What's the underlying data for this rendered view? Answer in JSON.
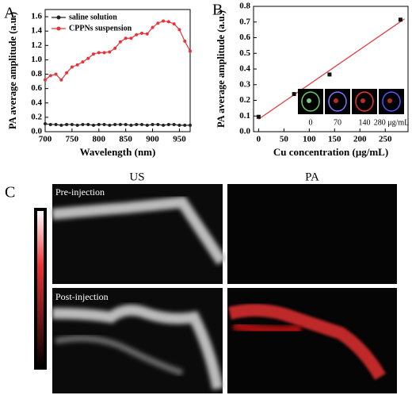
{
  "chart_data": [
    {
      "type": "line",
      "label": "A",
      "xlabel": "Wavelength (nm)",
      "ylabel": "PA average amplitude (a.u.)",
      "x": [
        700,
        710,
        720,
        730,
        740,
        750,
        760,
        770,
        780,
        790,
        800,
        810,
        820,
        830,
        840,
        850,
        860,
        870,
        880,
        890,
        900,
        910,
        920,
        930,
        940,
        950,
        960,
        970
      ],
      "series": [
        {
          "name": "saline solution",
          "color": "#222222",
          "values": [
            0.11,
            0.1,
            0.1,
            0.09,
            0.1,
            0.1,
            0.09,
            0.1,
            0.1,
            0.09,
            0.1,
            0.1,
            0.09,
            0.1,
            0.1,
            0.1,
            0.09,
            0.1,
            0.1,
            0.09,
            0.1,
            0.1,
            0.09,
            0.1,
            0.1,
            0.09,
            0.09,
            0.09
          ]
        },
        {
          "name": "CPPNs suspension",
          "color": "#e8333a",
          "values": [
            0.72,
            0.78,
            0.8,
            0.72,
            0.82,
            0.9,
            0.93,
            0.97,
            1.02,
            1.08,
            1.1,
            1.1,
            1.11,
            1.16,
            1.25,
            1.3,
            1.3,
            1.35,
            1.37,
            1.36,
            1.45,
            1.51,
            1.54,
            1.53,
            1.5,
            1.42,
            1.26,
            1.12
          ]
        }
      ],
      "xlim": [
        700,
        970
      ],
      "xticks": [
        700,
        750,
        800,
        850,
        900,
        950
      ],
      "ylim": [
        0,
        1.7
      ],
      "yticks": [
        {
          "value": 0,
          "label": "0.0"
        },
        0.2,
        0.4,
        0.6,
        0.8,
        {
          "value": 1,
          "label": "1.0"
        },
        1.2,
        1.4,
        1.6
      ],
      "legend": "upper left"
    },
    {
      "type": "scatter",
      "label": "B",
      "xlabel": "Cu concentration (μg/mL)",
      "ylabel": "PA average amplitude (a.u.)",
      "x": [
        0,
        70,
        140,
        280
      ],
      "values": [
        0.095,
        0.24,
        0.365,
        0.715
      ],
      "color": "#111111",
      "fit": {
        "x": [
          0,
          288
        ],
        "y": [
          0.08,
          0.72
        ],
        "color": "#e8333a"
      },
      "xlim": [
        -10,
        295
      ],
      "xticks": [
        0,
        50,
        100,
        150,
        200,
        250
      ],
      "ylim": [
        0,
        0.8
      ],
      "yticks": [
        {
          "value": 0,
          "label": "0.0"
        },
        0.1,
        0.2,
        0.3,
        0.4,
        0.5,
        0.6,
        0.7,
        0.8
      ],
      "inset": {
        "labels": [
          "0",
          "70",
          "140",
          "280 μg/mL"
        ]
      }
    }
  ],
  "panel_c": {
    "label": "C",
    "columns": [
      "US",
      "PA"
    ],
    "rows": [
      "Pre-injection",
      "Post-injection"
    ]
  }
}
